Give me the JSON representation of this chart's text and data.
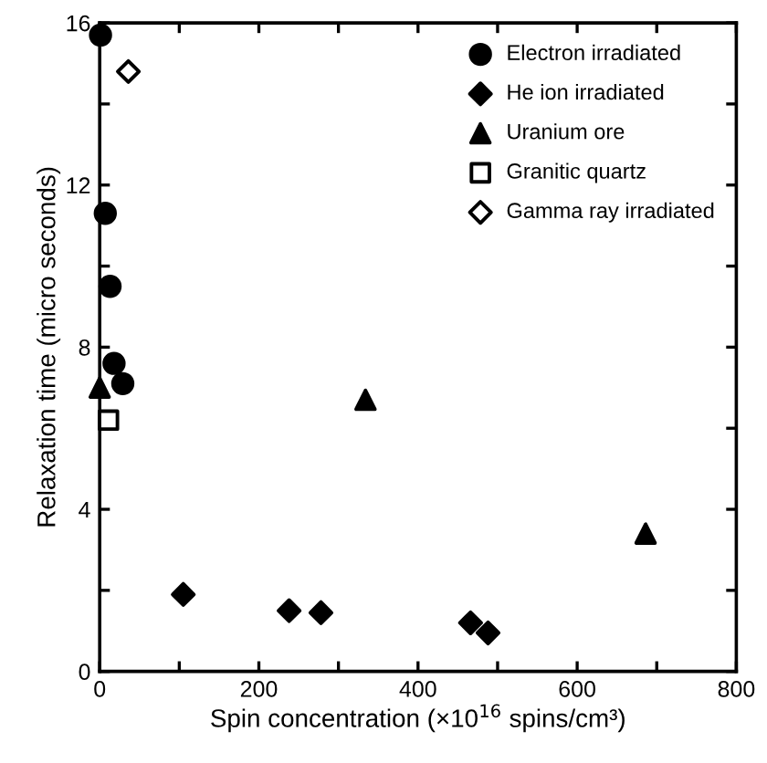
{
  "chart_data": {
    "type": "scatter",
    "xlabel": "Spin concentration (×10$^{16}$ spins/cm³)",
    "ylabel": "Relaxation time (micro seconds)",
    "xlim": [
      0,
      800
    ],
    "ylim": [
      0,
      16
    ],
    "xticks": [
      0,
      {
        "value": 100,
        "label": null
      },
      200,
      {
        "value": 300,
        "label": null
      },
      400,
      {
        "value": 500,
        "label": null
      },
      600,
      {
        "value": 700,
        "label": null
      },
      800
    ],
    "yticks": [
      0,
      {
        "value": 2,
        "label": null
      },
      4,
      {
        "value": 6,
        "label": null
      },
      8,
      {
        "value": 10,
        "label": null
      },
      12,
      {
        "value": 14,
        "label": null
      },
      16
    ],
    "legend": "top right",
    "grid": false,
    "series": [
      {
        "name": "Electron irradiated",
        "color": "#000000",
        "marker": "circle",
        "x": [
          1,
          7,
          13,
          18,
          29
        ],
        "values": [
          15.7,
          11.3,
          9.5,
          7.6,
          7.1
        ]
      },
      {
        "name": "He ion irradiated",
        "color": "#000000",
        "marker": "diamond",
        "x": [
          105,
          238,
          278,
          466,
          488
        ],
        "values": [
          1.9,
          1.5,
          1.45,
          1.2,
          0.95
        ]
      },
      {
        "name": "Uranium ore",
        "color": "#000000",
        "marker": "triangle",
        "x": [
          0,
          334,
          686
        ],
        "values": [
          7.0,
          6.7,
          3.4
        ]
      },
      {
        "name": "Granitic quartz",
        "color": "#ffffff",
        "marker": "square",
        "x": [
          11
        ],
        "values": [
          6.2
        ]
      },
      {
        "name": "Gamma ray irradiated",
        "color": "#ffffff",
        "marker": "diamond",
        "x": [
          36
        ],
        "values": [
          14.8
        ]
      }
    ]
  }
}
